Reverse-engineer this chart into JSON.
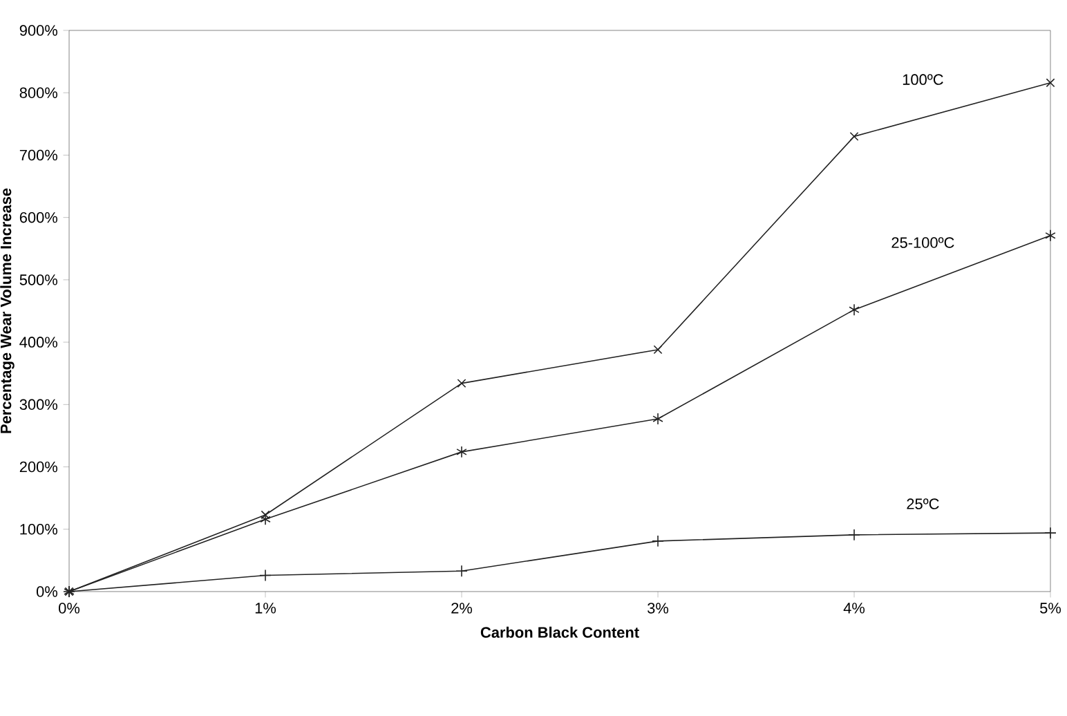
{
  "chart_data": {
    "type": "line",
    "xlabel": "Carbon Black Content",
    "ylabel": "Percentage Wear Volume Increase",
    "categories": [
      "0%",
      "1%",
      "2%",
      "3%",
      "4%",
      "5%"
    ],
    "series": [
      {
        "name": "100ºC",
        "color": "#222222",
        "marker": "cross",
        "values": [
          0,
          123,
          334,
          388,
          730,
          816
        ]
      },
      {
        "name": "25-100ºC",
        "color": "#222222",
        "marker": "cross",
        "values": [
          0,
          116,
          224,
          277,
          452,
          571
        ]
      },
      {
        "name": "25ºC",
        "color": "#222222",
        "marker": "plus",
        "values": [
          0,
          26,
          33,
          81,
          91,
          94
        ]
      }
    ],
    "ylim": [
      0,
      900
    ],
    "yticks": [
      {
        "value": 0,
        "label": "0%"
      },
      {
        "value": 100,
        "label": "100%"
      },
      {
        "value": 200,
        "label": "200%"
      },
      {
        "value": 300,
        "label": "300%"
      },
      {
        "value": 400,
        "label": "400%"
      },
      {
        "value": 500,
        "label": "500%"
      },
      {
        "value": 600,
        "label": "600%"
      },
      {
        "value": 700,
        "label": "700%"
      },
      {
        "value": 800,
        "label": "800%"
      },
      {
        "value": 900,
        "label": "900%"
      }
    ],
    "grid": false,
    "legend": false,
    "line_style": "solid"
  }
}
